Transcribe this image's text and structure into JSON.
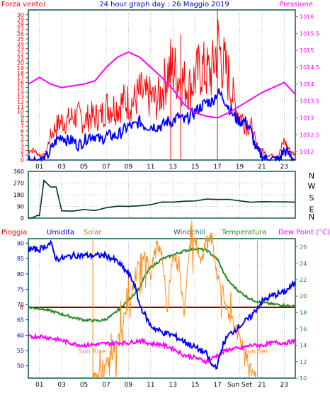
{
  "chart_data": [
    {
      "type": "line",
      "title": "24 hour graph day : 26 Maggio 2019",
      "left_axis_label": "Forza vento)",
      "right_axis_label": "Pressione",
      "x_ticks": [
        "01",
        "03",
        "05",
        "07",
        "09",
        "11",
        "13",
        "15",
        "17",
        "19",
        "21",
        "23"
      ],
      "xlim": [
        0,
        24
      ],
      "left_ylim": [
        0,
        31
      ],
      "left_ticks": [
        0,
        1,
        2,
        3,
        4,
        5,
        6,
        7,
        8,
        9,
        10,
        11,
        12,
        13,
        14,
        15,
        16,
        17,
        18,
        19,
        20,
        21,
        22,
        23,
        24,
        25,
        26,
        27,
        28,
        29,
        30
      ],
      "right_ylim": [
        1011.75,
        1016.2
      ],
      "right_ticks": [
        "1012",
        "1012.5",
        "1013",
        "1013.5",
        "1014",
        "1014.5",
        "1015",
        "1015.5",
        "1016"
      ],
      "colors": {
        "gust": "#ff0000",
        "wind": "#0000ff",
        "pressure": "#ff00ff"
      },
      "series": [
        {
          "key": "gust",
          "x": [
            0,
            0.5,
            1,
            1.5,
            2,
            2.5,
            3,
            3.5,
            4,
            4.5,
            5,
            5.5,
            6,
            6.5,
            7,
            7.5,
            8,
            8.5,
            9,
            9.5,
            10,
            10.5,
            11,
            11.5,
            12,
            12.5,
            13,
            13.5,
            14,
            14.5,
            15,
            15.5,
            16,
            16.5,
            17,
            17.5,
            18,
            18.5,
            19,
            19.5,
            20,
            20.5,
            21,
            21.5,
            22,
            22.5,
            23,
            23.5,
            24
          ],
          "values": [
            2,
            2,
            1,
            1,
            5,
            7,
            8,
            8,
            9,
            9,
            8,
            9,
            9,
            9,
            11,
            11,
            11,
            12,
            12,
            12,
            14,
            13,
            13,
            12,
            14,
            18,
            19,
            17,
            16,
            15,
            17,
            19,
            18,
            18,
            24,
            20,
            17,
            12,
            9,
            8,
            7,
            3,
            2,
            1,
            1,
            1,
            4,
            2,
            1
          ],
          "peaks": [
            [
              17,
              31
            ],
            [
              13.7,
              26
            ],
            [
              12.8,
              25
            ]
          ]
        },
        {
          "key": "wind",
          "x": [
            0,
            0.5,
            1,
            1.5,
            2,
            2.5,
            3,
            3.5,
            4,
            4.5,
            5,
            5.5,
            6,
            6.5,
            7,
            7.5,
            8,
            8.5,
            9,
            9.5,
            10,
            10.5,
            11,
            11.5,
            12,
            12.5,
            13,
            13.5,
            14,
            14.5,
            15,
            15.5,
            16,
            16.5,
            17,
            17.5,
            18,
            18.5,
            19,
            19.5,
            20,
            20.5,
            21,
            21.5,
            22,
            22.5,
            23,
            23.5,
            24
          ],
          "values": [
            0,
            0,
            0,
            0,
            2,
            4,
            5,
            4,
            4,
            3,
            4,
            5,
            5,
            4,
            5,
            5,
            5,
            6,
            7,
            7,
            8,
            7,
            7,
            7,
            7,
            8,
            8,
            9,
            8,
            9,
            10,
            11,
            12,
            12,
            14,
            13,
            11,
            9,
            8,
            8,
            6,
            2,
            1,
            0,
            0,
            0,
            2,
            1,
            0
          ]
        },
        {
          "key": "pressure",
          "x": [
            0,
            1,
            2,
            3,
            4,
            5,
            6,
            7,
            8,
            9,
            10,
            11,
            12,
            13,
            14,
            15,
            16,
            17,
            18,
            19,
            20,
            21,
            22,
            23,
            24
          ],
          "values": [
            1014.0,
            1014.2,
            1014.0,
            1013.9,
            1013.95,
            1014.0,
            1014.1,
            1014.5,
            1014.8,
            1014.95,
            1014.8,
            1014.5,
            1014.2,
            1013.85,
            1013.4,
            1013.15,
            1013.05,
            1013.0,
            1013.15,
            1013.35,
            1013.55,
            1013.75,
            1013.9,
            1014.05,
            1013.7
          ]
        }
      ]
    },
    {
      "type": "line",
      "left_ticks": [
        "0",
        "90",
        "180",
        "270",
        "360"
      ],
      "ylim": [
        0,
        360
      ],
      "compass": [
        "N",
        "W",
        "S",
        "E",
        "N"
      ],
      "color": "#003322",
      "series": [
        {
          "key": "direction",
          "x": [
            0,
            0.3,
            0.8,
            1.0,
            1.4,
            2.0,
            2.5,
            3.0,
            4,
            5,
            6,
            7,
            8,
            9,
            10,
            11,
            12,
            13,
            14,
            15,
            16,
            17,
            18,
            19,
            20,
            21,
            22,
            23,
            24
          ],
          "values": [
            0,
            0,
            20,
            20,
            290,
            240,
            240,
            50,
            50,
            60,
            65,
            75,
            85,
            95,
            100,
            110,
            120,
            130,
            130,
            135,
            140,
            140,
            150,
            135,
            125,
            125,
            125,
            125,
            125
          ]
        }
      ]
    },
    {
      "type": "line",
      "header_labels": {
        "rain": "Pioggia",
        "humidity": "Umidita",
        "solar": "Solar",
        "windchill": "Windchill",
        "temperature": "Temperatura",
        "dewpoint": "Dew Point (°C)"
      },
      "annotations": [
        "Sun Rise",
        "Sun Set"
      ],
      "x_ticks": [
        "01",
        "03",
        "05",
        "07",
        "09",
        "11",
        "13",
        "15",
        "17",
        "Sun Set",
        "21",
        "23"
      ],
      "xlim": [
        0,
        24
      ],
      "left_ylim": [
        46,
        91.5
      ],
      "left_ticks": [
        50,
        55,
        60,
        65,
        70,
        75,
        80,
        85,
        90
      ],
      "right_ylim": [
        10,
        27
      ],
      "right_ticks": [
        10,
        12,
        14,
        16,
        18,
        20,
        22,
        24,
        26
      ],
      "zero_label": "0",
      "colors": {
        "rain": "#8b0000",
        "humidity": "#0000ff",
        "solar": "#ff8c1a",
        "windchill": "#1a6b1a",
        "temperature": "#228b22",
        "dewpoint": "#ff00ff"
      },
      "series": [
        {
          "key": "humidity",
          "x": [
            0,
            1,
            2,
            2.5,
            3,
            4,
            5,
            6,
            7,
            8,
            9,
            9.5,
            10,
            11,
            12,
            13,
            14,
            15,
            16,
            16.5,
            17,
            17.5,
            18,
            19,
            20,
            21,
            22,
            23,
            24
          ],
          "values": [
            88,
            88,
            90,
            85,
            85,
            86,
            86,
            86,
            86,
            84,
            80,
            77,
            70,
            63,
            61,
            60,
            58,
            56,
            54,
            50,
            50,
            57,
            60,
            63,
            66,
            71,
            73,
            74,
            77
          ]
        },
        {
          "key": "dewpoint",
          "x": [
            0,
            1,
            2,
            3,
            4,
            5,
            6,
            7,
            8,
            9,
            10,
            11,
            12,
            13,
            14,
            15,
            16,
            17,
            18,
            19,
            20,
            21,
            22,
            23,
            24
          ],
          "values": [
            15.0,
            15.1,
            14.9,
            14.6,
            14.2,
            14.0,
            14.1,
            14.2,
            14.3,
            14.3,
            14.6,
            14.2,
            14.1,
            13.6,
            12.8,
            12.5,
            12.0,
            12.8,
            13.5,
            13.6,
            14.0,
            14.0,
            14.3,
            14.3,
            14.5
          ]
        },
        {
          "key": "temperature",
          "x": [
            0,
            1,
            2,
            3,
            4,
            5,
            6,
            6.5,
            7,
            7.5,
            8,
            9,
            10,
            10.5,
            11,
            12,
            13,
            14,
            15,
            16,
            17,
            17.5,
            18,
            19,
            20,
            21,
            22,
            23,
            24
          ],
          "values": [
            18.6,
            18.5,
            18.2,
            17.8,
            17.4,
            17.1,
            17.0,
            17.0,
            17.2,
            17.6,
            18.2,
            19.5,
            21.0,
            22.5,
            23.5,
            24.5,
            25.0,
            25.5,
            25.8,
            25.6,
            24.5,
            23.0,
            21.8,
            20.5,
            19.6,
            19.2,
            19.0,
            18.9,
            18.7
          ]
        },
        {
          "key": "solar",
          "x": [
            5.8,
            6,
            6.5,
            7,
            7.5,
            8,
            8.5,
            9,
            9.5,
            10,
            10.5,
            11,
            11.5,
            12,
            12.5,
            13,
            13.5,
            14,
            14.5,
            15,
            15.5,
            16,
            16.5,
            17,
            17.5,
            18,
            18.5,
            19,
            19.5,
            20,
            20.5
          ],
          "values": [
            0,
            0.5,
            1,
            3,
            5,
            9,
            13,
            18,
            22,
            28,
            30,
            24,
            32,
            30,
            16,
            30,
            26,
            16,
            32,
            33,
            27,
            33,
            33,
            24,
            21,
            14,
            13,
            9,
            6,
            2,
            0
          ]
        }
      ]
    }
  ]
}
